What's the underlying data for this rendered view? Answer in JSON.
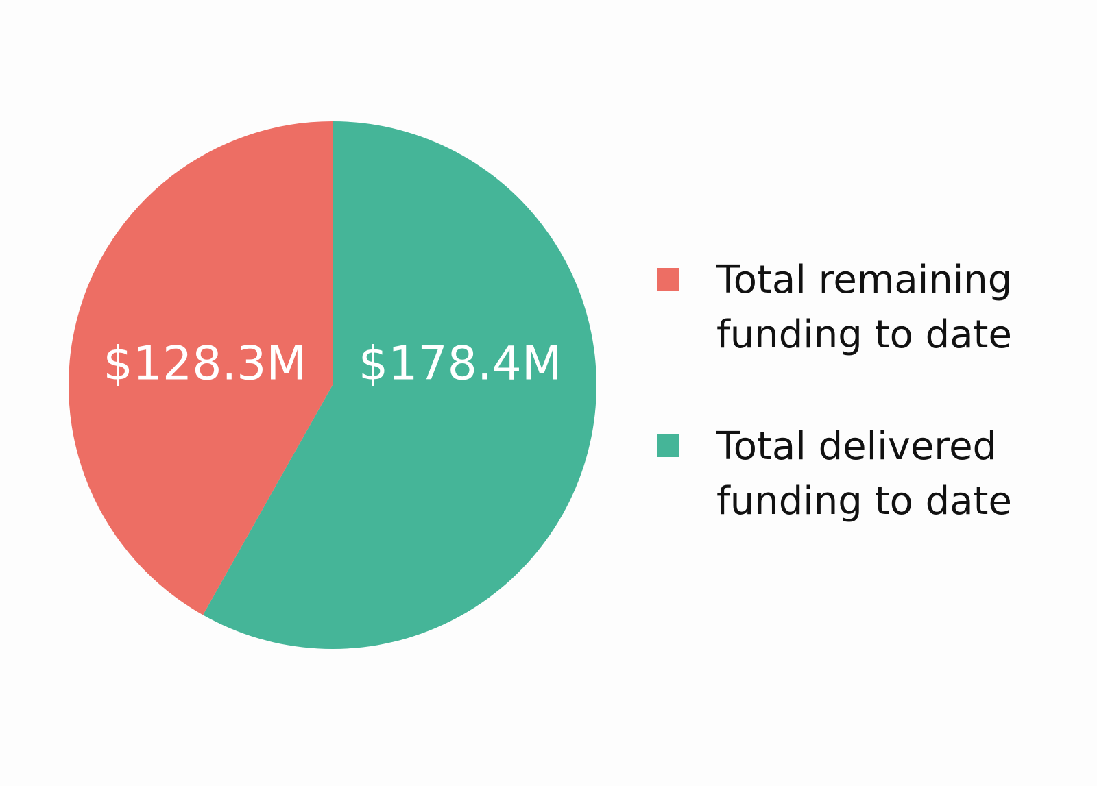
{
  "chart_data": {
    "type": "pie",
    "categories": [
      "Total remaining funding to date",
      "Total delivered funding to date"
    ],
    "values": [
      128.3,
      178.4
    ],
    "value_labels": [
      "$128.3M",
      "$178.4M"
    ],
    "colors": [
      "#ed6e64",
      "#45b598"
    ],
    "legend": "right"
  }
}
